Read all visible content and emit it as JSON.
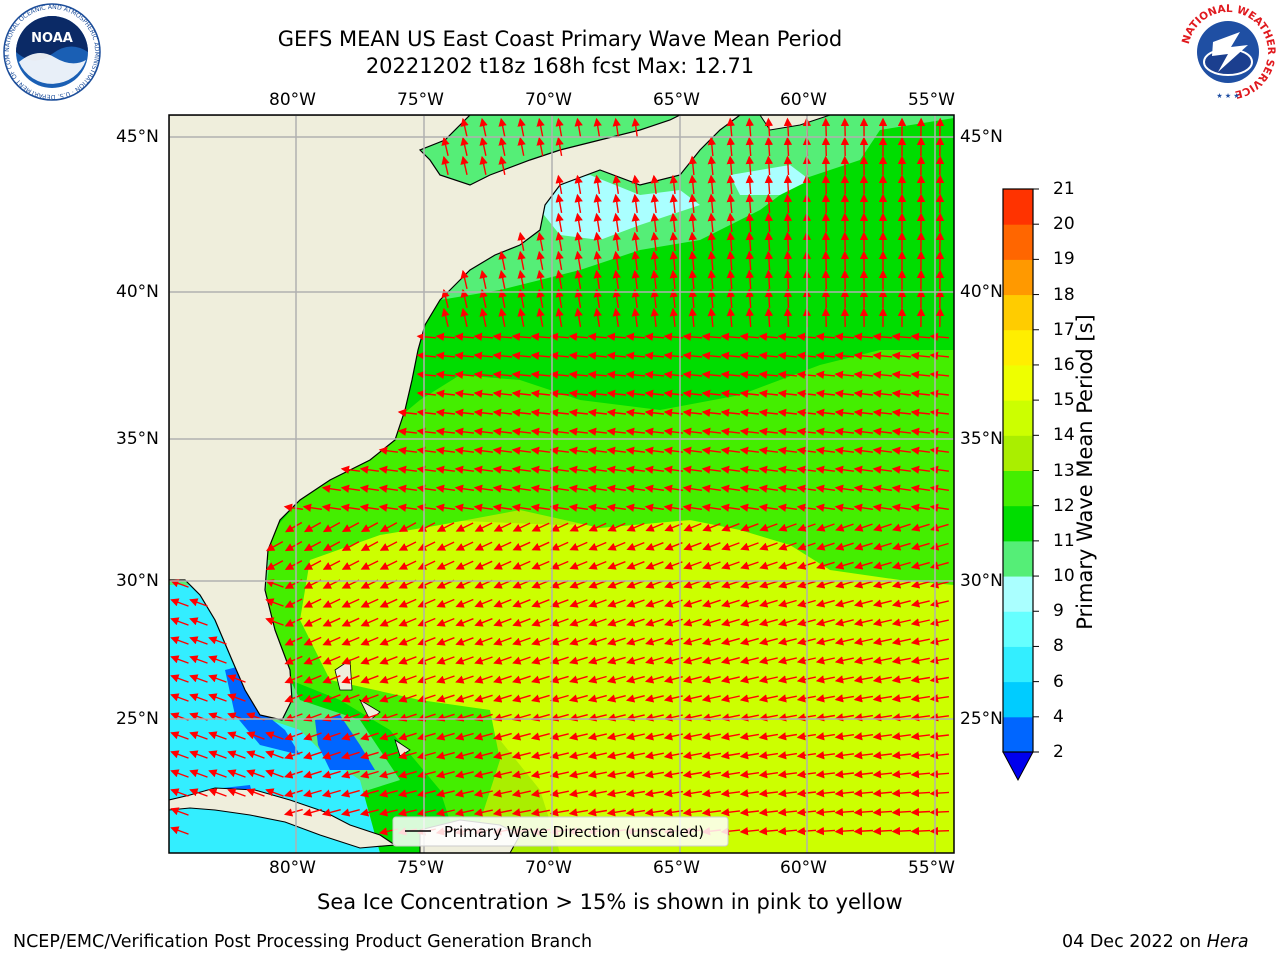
{
  "title": {
    "line1": "GEFS MEAN US East Coast Primary Wave Mean Period",
    "line2": "20221202 t18z 168h fcst   Max: 12.71"
  },
  "logos": {
    "noaa": {
      "text": "NOAA",
      "ring_text": "NATIONAL OCEANIC AND ATMOSPHERIC ADMINISTRATION · U.S. DEPARTMENT OF COMMERCE"
    },
    "nws": {
      "ring_text": "NATIONAL WEATHER SERVICE"
    }
  },
  "map": {
    "lon_labels": [
      "80°W",
      "75°W",
      "70°W",
      "65°W",
      "60°W",
      "55°W"
    ],
    "lat_labels": [
      "45°N",
      "40°N",
      "35°N",
      "30°N",
      "25°N"
    ],
    "legend_label": "Primary Wave Direction (unscaled)",
    "arrow_color": "#ff0000",
    "land_color": "#efeedc"
  },
  "colorbar": {
    "label": "Primary Wave Mean Period [s]",
    "tick_labels": [
      "2",
      "4",
      "6",
      "8",
      "9",
      "10",
      "11",
      "12",
      "13",
      "14",
      "15",
      "16",
      "17",
      "18",
      "19",
      "20",
      "21"
    ],
    "colors": [
      "#0066ff",
      "#00ccff",
      "#33eeff",
      "#66ffff",
      "#aaffff",
      "#55ee77",
      "#00dd00",
      "#44ee00",
      "#aaee00",
      "#ccff00",
      "#eeff00",
      "#ffee00",
      "#ffcc00",
      "#ff9900",
      "#ff6600",
      "#ff3300",
      "#ff0000"
    ],
    "extend_color": "#0000ee"
  },
  "note": "Sea Ice Concentration > 15% is shown in pink to yellow",
  "footer": {
    "left": "NCEP/EMC/Verification Post Processing Product Generation Branch",
    "date": "04 Dec 2022 on ",
    "machine": "Hera"
  }
}
